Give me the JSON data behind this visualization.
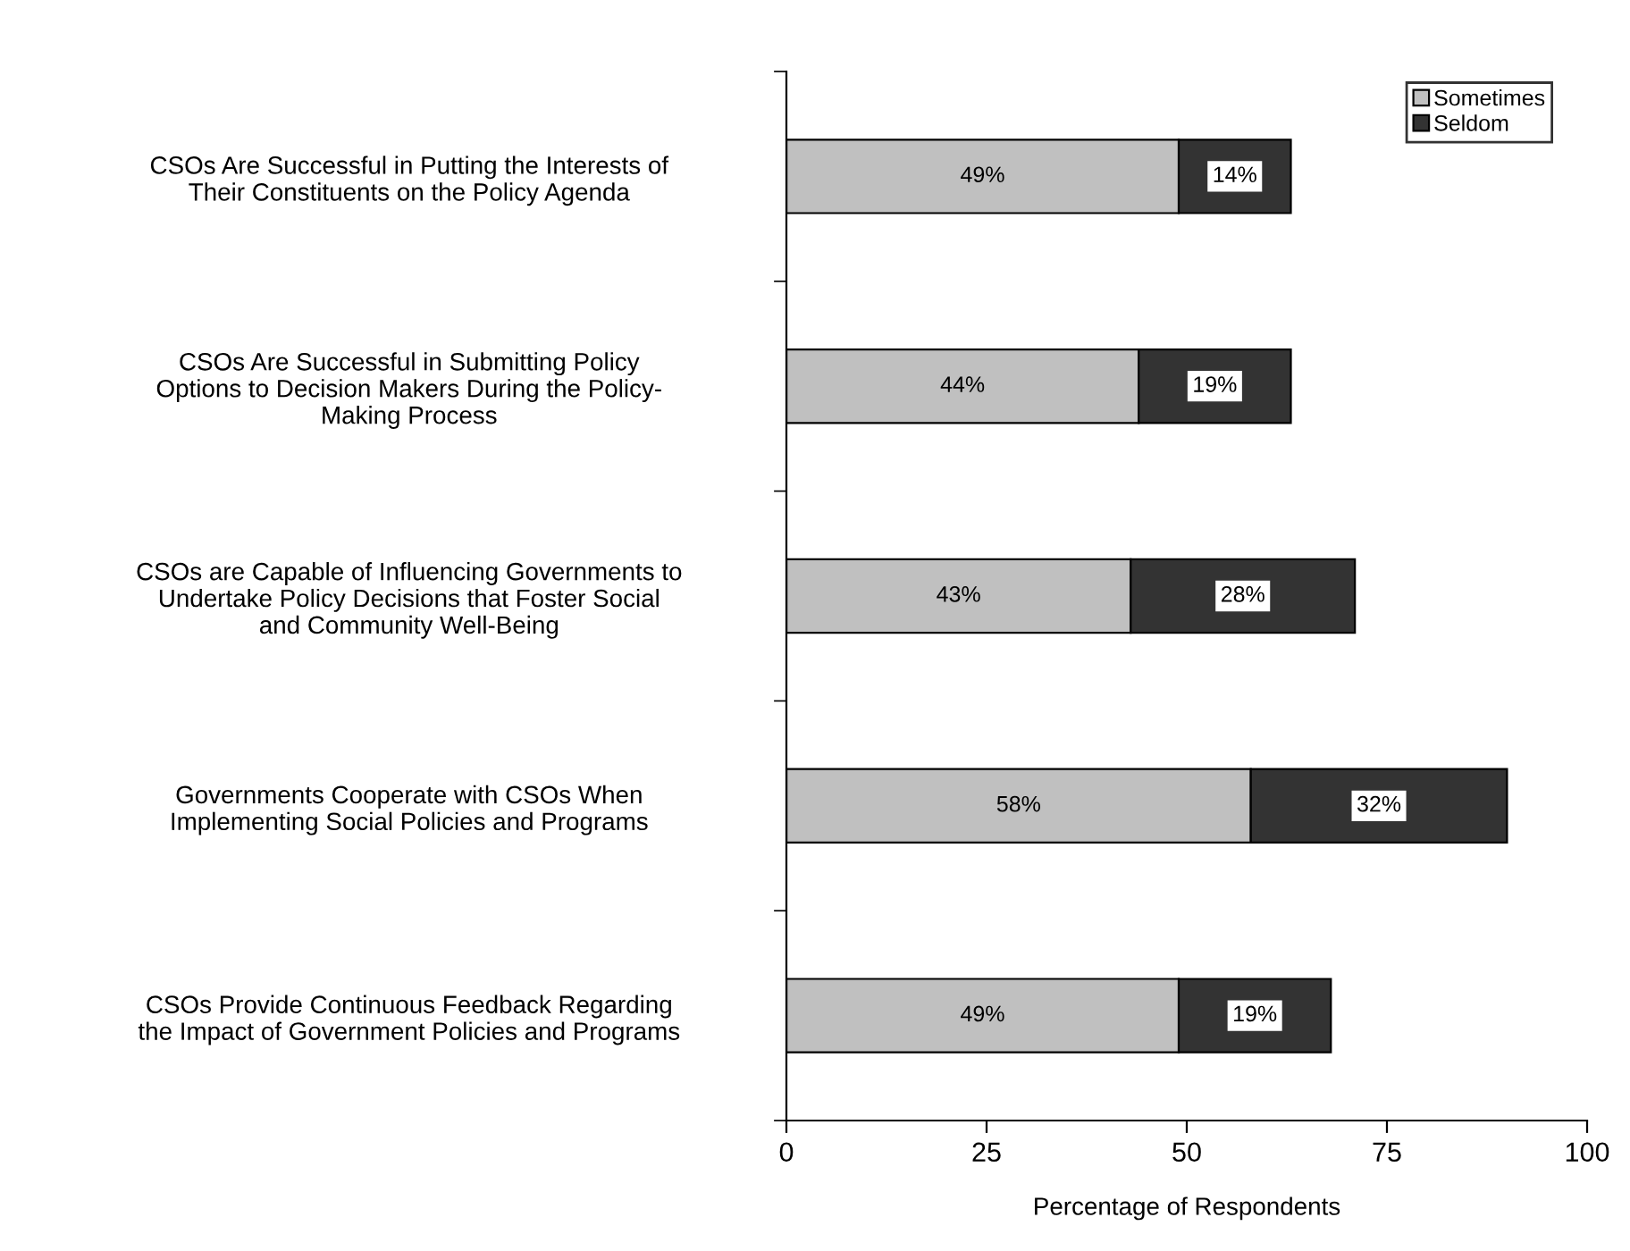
{
  "chart_data": {
    "type": "bar",
    "orientation": "horizontal",
    "stacked": true,
    "categories": [
      "CSOs Are Successful in Putting the Interests of\nTheir Constituents on the Policy Agenda",
      "CSOs Are Successful in Submitting Policy\nOptions to Decision Makers During the Policy-\nMaking Process",
      "CSOs are Capable of Influencing Governments to\nUndertake Policy Decisions that Foster Social\nand Community Well-Being",
      "Governments Cooperate with CSOs When\nImplementing Social Policies and Programs",
      "CSOs Provide Continuous Feedback Regarding\nthe Impact of Government Policies and Programs"
    ],
    "series": [
      {
        "name": "Sometimes",
        "color": "#c0c0c0",
        "values": [
          49,
          44,
          43,
          58,
          49
        ],
        "value_labels": [
          "49%",
          "44%",
          "43%",
          "58%",
          "49%"
        ]
      },
      {
        "name": "Seldom",
        "color": "#333333",
        "values": [
          14,
          19,
          28,
          32,
          19
        ],
        "value_labels": [
          "14%",
          "19%",
          "28%",
          "32%",
          "19%"
        ]
      }
    ],
    "xlim": [
      0,
      100
    ],
    "xticks": [
      0,
      25,
      50,
      75,
      100
    ],
    "xlabel": "Percentage of Respondents",
    "grid": false,
    "legend": "top right"
  }
}
